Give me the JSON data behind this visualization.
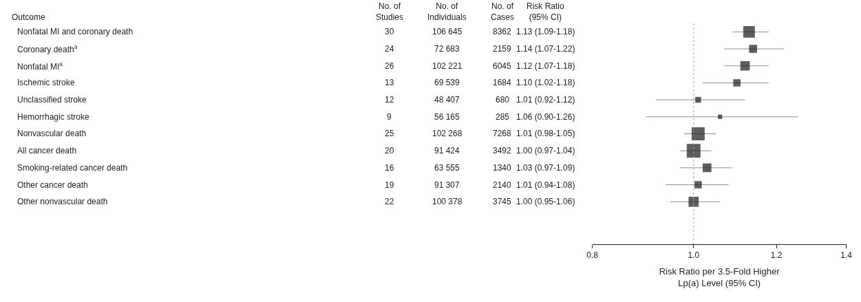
{
  "chart_data": [
    {
      "type": "other",
      "ylabel": "Outcome",
      "categories": [
        "No. of\nStudies",
        "No. of\nIndividuals",
        "No. of\nCases",
        "Risk Ratio\n(95% CI)"
      ],
      "y_categories": [
        "Nonfatal MI and coronary death",
        "Coronary death$^{a}$",
        "Nonfatal MI$^{a}$",
        "Ischemic stroke",
        "Unclassified stroke",
        "Hemorrhagic stroke",
        "Nonvascular death",
        "All cancer death",
        "Smoking-related cancer death",
        "Other cancer death",
        "Other nonvascular death"
      ],
      "annotations": [
        "30",
        "106 645",
        "8362",
        "1.13 (1.09-1.18)",
        "24",
        "72 683",
        "2159",
        "1.14 (1.07-1.22)",
        "26",
        "102 221",
        "6045",
        "1.12 (1.07-1.18)",
        "13",
        "69 539",
        "1684",
        "1.10 (1.02-1.18)",
        "12",
        "48 407",
        "680",
        "1.01 (0.92-1.12)",
        "9",
        "56 165",
        "285",
        "1.06 (0.90-1.26)",
        "25",
        "102 268",
        "7268",
        "1.01 (0.98-1.05)",
        "20",
        "91 424",
        "3492",
        "1.00 (0.97-1.04)",
        "16",
        "63 555",
        "1340",
        "1.03 (0.97-1.09)",
        "19",
        "91 307",
        "2140",
        "1.01 (0.94-1.08)",
        "22",
        "100 378",
        "3745",
        "1.00 (0.95-1.06)"
      ]
    },
    {
      "type": "bubble",
      "orientation": "horizontal",
      "marker": "square",
      "log": "x",
      "tick_labels": "x",
      "xlabel": "Risk Ratio per 3.5-Fold Higher\nLp(a) Level (95% CI)",
      "categories": [
        null,
        null,
        null,
        null,
        null,
        null,
        null,
        null,
        null,
        null,
        null,
        null,
        null
      ],
      "series": [
        {
          "color": "#1a1a1a",
          "values": [
            1.13,
            1.14,
            1.12,
            1.1,
            1.01,
            1.06,
            1.01,
            1.0,
            1.03,
            1.01,
            1.0,
            null,
            null
          ],
          "errors": [
            [
              1.09,
              1.18
            ],
            [
              1.07,
              1.22
            ],
            [
              1.07,
              1.18
            ],
            [
              1.02,
              1.18
            ],
            [
              0.92,
              1.12
            ],
            [
              0.9,
              1.26
            ],
            [
              0.98,
              1.05
            ],
            [
              0.97,
              1.04
            ],
            [
              0.97,
              1.09
            ],
            [
              0.94,
              1.08
            ],
            [
              0.95,
              1.06
            ],
            null,
            null
          ],
          "sizes": [
            0.71,
            0.34,
            0.47,
            0.28,
            0.18,
            0.1,
            0.9,
            1,
            0.4,
            0.28,
            0.54,
            null,
            null
          ]
        }
      ],
      "xlim": [
        0.8,
        1.4
      ],
      "xticks": [
        0.8,
        {
          "value": 1.0,
          "label": "1.0"
        },
        1.2,
        1.4
      ],
      "ref_lines": [
        {
          "axis": "x",
          "value": 1.0,
          "color": "#999999",
          "line_style": "dotted"
        }
      ]
    }
  ]
}
